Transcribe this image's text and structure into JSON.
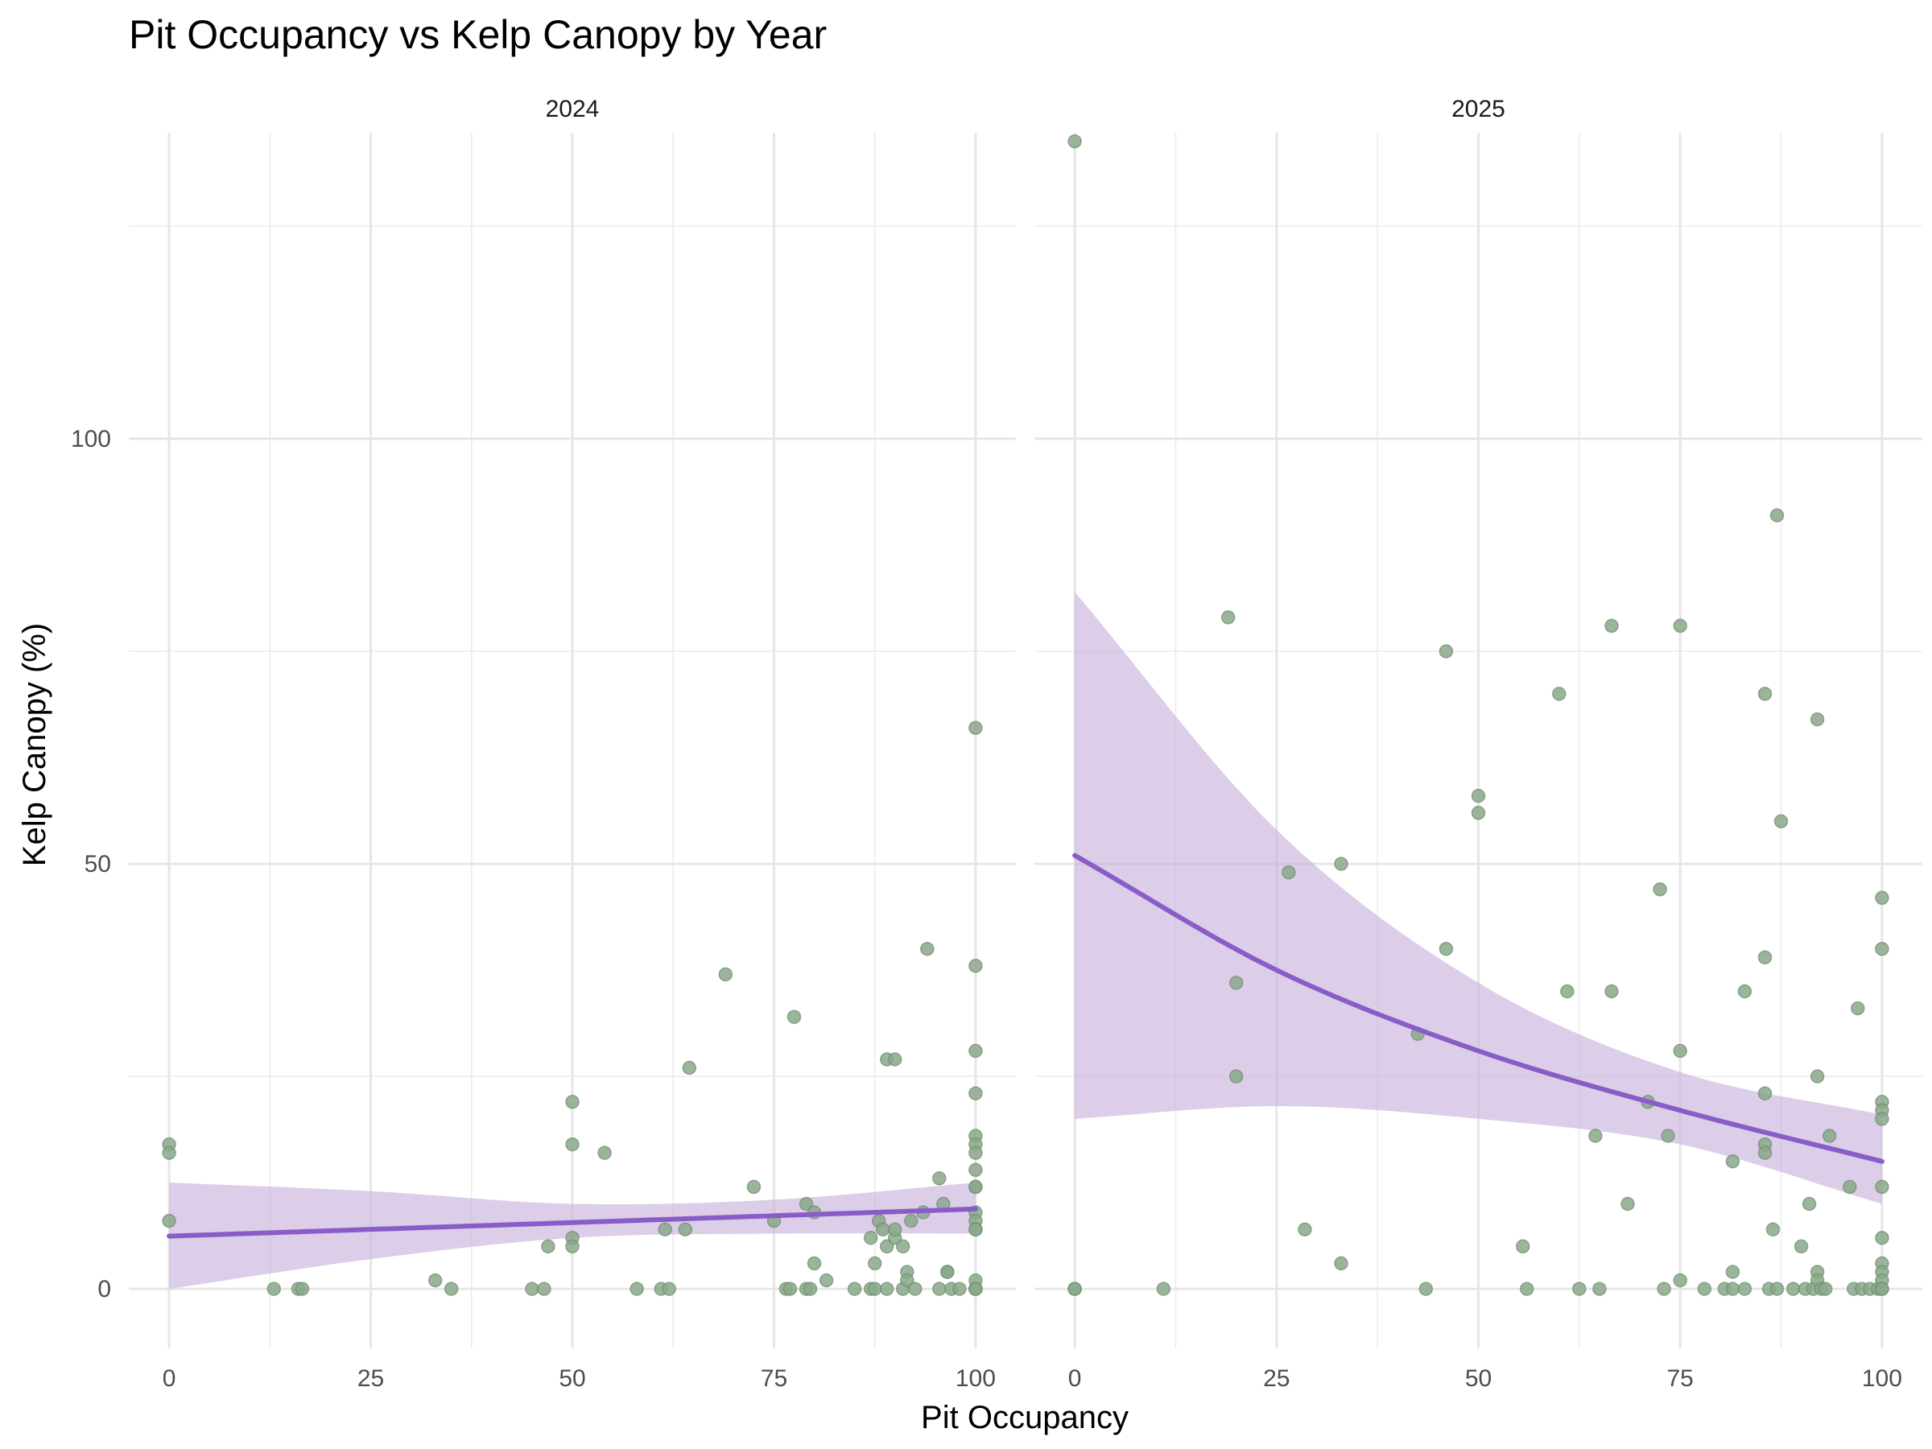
{
  "chart_data": {
    "type": "scatter",
    "title": "Pit Occupancy vs Kelp Canopy by Year",
    "xlabel": "Pit Occupancy",
    "ylabel": "Kelp Canopy (%)",
    "xlim": [
      -5,
      105
    ],
    "ylim": [
      -7,
      136
    ],
    "x_ticks": [
      0,
      25,
      50,
      75,
      100
    ],
    "y_ticks": [
      0,
      50,
      100
    ],
    "grid": true,
    "legend": "none",
    "point_color": "#8aa88a",
    "line_color": "#8a5cc8",
    "band_color": "#c9b3db",
    "panels": [
      {
        "label": "2024",
        "points": [
          [
            0,
            17
          ],
          [
            0,
            16
          ],
          [
            0,
            8
          ],
          [
            13,
            0
          ],
          [
            16,
            0
          ],
          [
            16.5,
            0
          ],
          [
            33,
            1
          ],
          [
            35,
            0
          ],
          [
            45,
            0
          ],
          [
            46.5,
            0
          ],
          [
            47,
            5
          ],
          [
            50,
            22
          ],
          [
            50,
            17
          ],
          [
            50,
            6
          ],
          [
            50,
            5
          ],
          [
            54,
            16
          ],
          [
            58,
            0
          ],
          [
            61,
            0
          ],
          [
            62,
            0
          ],
          [
            61.5,
            7
          ],
          [
            64,
            7
          ],
          [
            64.5,
            26
          ],
          [
            69,
            37
          ],
          [
            72.5,
            12
          ],
          [
            75,
            8
          ],
          [
            76.5,
            0
          ],
          [
            77,
            0
          ],
          [
            77.5,
            32
          ],
          [
            79,
            10
          ],
          [
            79,
            0
          ],
          [
            79.5,
            0
          ],
          [
            80,
            3
          ],
          [
            80,
            9
          ],
          [
            81.5,
            1
          ],
          [
            85,
            0
          ],
          [
            87,
            0
          ],
          [
            87.5,
            0
          ],
          [
            87,
            6
          ],
          [
            87.5,
            3
          ],
          [
            88,
            8
          ],
          [
            88.5,
            7
          ],
          [
            89,
            5
          ],
          [
            89,
            27
          ],
          [
            89,
            0
          ],
          [
            90,
            27
          ],
          [
            90,
            6
          ],
          [
            90,
            7
          ],
          [
            91,
            5
          ],
          [
            91,
            0
          ],
          [
            91.5,
            2
          ],
          [
            91.5,
            1
          ],
          [
            92,
            8
          ],
          [
            92.5,
            0
          ],
          [
            93.5,
            9
          ],
          [
            94,
            40
          ],
          [
            95.5,
            13
          ],
          [
            95.5,
            0
          ],
          [
            96,
            10
          ],
          [
            96.5,
            2
          ],
          [
            96.5,
            2
          ],
          [
            97,
            0
          ],
          [
            98,
            0
          ],
          [
            100,
            66
          ],
          [
            100,
            38
          ],
          [
            100,
            28
          ],
          [
            100,
            23
          ],
          [
            100,
            18
          ],
          [
            100,
            17
          ],
          [
            100,
            16
          ],
          [
            100,
            14
          ],
          [
            100,
            12
          ],
          [
            100,
            12
          ],
          [
            100,
            9
          ],
          [
            100,
            8
          ],
          [
            100,
            7
          ],
          [
            100,
            7
          ],
          [
            100,
            1
          ],
          [
            100,
            0
          ],
          [
            100,
            0
          ],
          [
            100,
            0
          ]
        ],
        "fit_x": [
          0,
          25,
          50,
          75,
          100
        ],
        "fit_y": [
          6.2,
          7.0,
          7.8,
          8.6,
          9.4
        ],
        "band_lower": [
          0.0,
          3.5,
          6.0,
          6.5,
          6.5
        ],
        "band_upper": [
          12.5,
          11.5,
          10.0,
          10.5,
          12.5
        ]
      },
      {
        "label": "2025",
        "points": [
          [
            0,
            135
          ],
          [
            0,
            0
          ],
          [
            0,
            0
          ],
          [
            11,
            0
          ],
          [
            19,
            79
          ],
          [
            20,
            36
          ],
          [
            20,
            25
          ],
          [
            26.5,
            49
          ],
          [
            28.5,
            7
          ],
          [
            33,
            50
          ],
          [
            33,
            3
          ],
          [
            42.5,
            30
          ],
          [
            43.5,
            0
          ],
          [
            46,
            75
          ],
          [
            46,
            40
          ],
          [
            50,
            58
          ],
          [
            50,
            56
          ],
          [
            55.5,
            5
          ],
          [
            56,
            0
          ],
          [
            60,
            70
          ],
          [
            61,
            35
          ],
          [
            62.5,
            0
          ],
          [
            64.5,
            18
          ],
          [
            65,
            0
          ],
          [
            66.5,
            78
          ],
          [
            66.5,
            35
          ],
          [
            68.5,
            10
          ],
          [
            71,
            22
          ],
          [
            72.5,
            47
          ],
          [
            73,
            0
          ],
          [
            73.5,
            18
          ],
          [
            75,
            78
          ],
          [
            75,
            28
          ],
          [
            75,
            1
          ],
          [
            78,
            0
          ],
          [
            80.5,
            0
          ],
          [
            81.5,
            0
          ],
          [
            81.5,
            15
          ],
          [
            81.5,
            2
          ],
          [
            83,
            35
          ],
          [
            83,
            0
          ],
          [
            85.5,
            70
          ],
          [
            85.5,
            39
          ],
          [
            85.5,
            23
          ],
          [
            85.5,
            17
          ],
          [
            85.5,
            16
          ],
          [
            86,
            0
          ],
          [
            86.5,
            7
          ],
          [
            87,
            91
          ],
          [
            87,
            0
          ],
          [
            87.5,
            55
          ],
          [
            89,
            0
          ],
          [
            90,
            5
          ],
          [
            90.5,
            0
          ],
          [
            91,
            10
          ],
          [
            91.5,
            0
          ],
          [
            92,
            67
          ],
          [
            92,
            25
          ],
          [
            92,
            2
          ],
          [
            92,
            1
          ],
          [
            92.5,
            0
          ],
          [
            93,
            0
          ],
          [
            93.5,
            18
          ],
          [
            96,
            12
          ],
          [
            96.5,
            0
          ],
          [
            97,
            33
          ],
          [
            97.5,
            0
          ],
          [
            98.5,
            0
          ],
          [
            99.5,
            0
          ],
          [
            100,
            46
          ],
          [
            100,
            40
          ],
          [
            100,
            22
          ],
          [
            100,
            21
          ],
          [
            100,
            20
          ],
          [
            100,
            12
          ],
          [
            100,
            6
          ],
          [
            100,
            3
          ],
          [
            100,
            2
          ],
          [
            100,
            1
          ],
          [
            100,
            0
          ],
          [
            100,
            0
          ]
        ],
        "fit_x": [
          0,
          25,
          50,
          75,
          100
        ],
        "fit_y": [
          51,
          37.5,
          28,
          21,
          15
        ],
        "band_lower": [
          20,
          21.5,
          20,
          17,
          10
        ],
        "band_upper": [
          82,
          54,
          36,
          25.5,
          20.5
        ]
      }
    ]
  }
}
